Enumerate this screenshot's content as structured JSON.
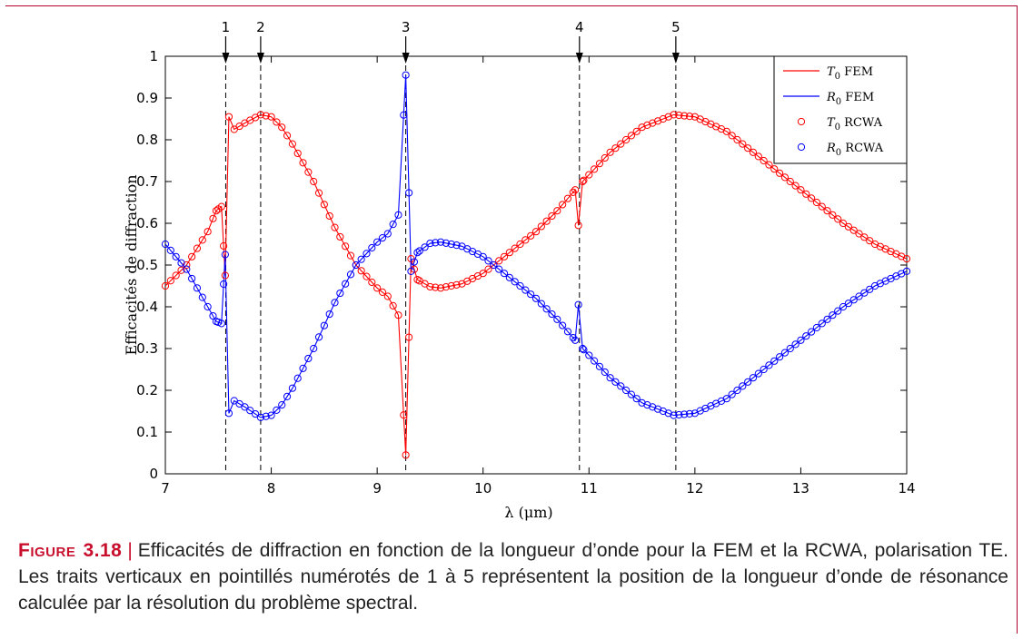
{
  "colors": {
    "t0": "#ff0000",
    "r0": "#0000ff",
    "frame": "#b0002c",
    "caption_accent": "#c8102e"
  },
  "caption": {
    "label": "Figure 3.18",
    "separator": "|",
    "text": "Efficacités de diffraction en fonction de la longueur d’onde pour la FEM et la RCWA, polarisation TE. Les traits verticaux en pointillés numérotés de 1 à 5 représentent la position de la longueur d’onde de résonance calculée par la résolution du problème spectral."
  },
  "chart_data": {
    "type": "line",
    "xlabel": "λ (μm)",
    "ylabel": "Efficacités de diffraction",
    "xlim": [
      7,
      14
    ],
    "ylim": [
      0,
      1
    ],
    "x_ticks": [
      7,
      8,
      9,
      10,
      11,
      12,
      13,
      14
    ],
    "y_ticks": [
      0,
      0.1,
      0.2,
      0.3,
      0.4,
      0.5,
      0.6,
      0.7,
      0.8,
      0.9,
      1
    ],
    "grid": false,
    "legend_position": "top-right",
    "resonances": [
      {
        "label": "1",
        "x": 7.57
      },
      {
        "label": "2",
        "x": 7.9
      },
      {
        "label": "3",
        "x": 9.27
      },
      {
        "label": "4",
        "x": 10.91
      },
      {
        "label": "5",
        "x": 11.82
      }
    ],
    "series": [
      {
        "name": "T0 FEM",
        "label_sym": "T",
        "label_sub": "0",
        "label_rest": " FEM",
        "kind": "line",
        "color": "#ff0000",
        "points": [
          [
            7,
            0.45
          ],
          [
            7.2,
            0.5
          ],
          [
            7.4,
            0.58
          ],
          [
            7.48,
            0.63
          ],
          [
            7.53,
            0.64
          ],
          [
            7.565,
            0.475
          ],
          [
            7.6,
            0.855
          ],
          [
            7.65,
            0.825
          ],
          [
            7.75,
            0.84
          ],
          [
            7.9,
            0.86
          ],
          [
            8.0,
            0.855
          ],
          [
            8.1,
            0.83
          ],
          [
            8.2,
            0.79
          ],
          [
            8.4,
            0.7
          ],
          [
            8.6,
            0.59
          ],
          [
            8.8,
            0.5
          ],
          [
            9.0,
            0.445
          ],
          [
            9.1,
            0.425
          ],
          [
            9.2,
            0.38
          ],
          [
            9.27,
            0.045
          ],
          [
            9.32,
            0.515
          ],
          [
            9.38,
            0.465
          ],
          [
            9.5,
            0.448
          ],
          [
            9.6,
            0.445
          ],
          [
            9.8,
            0.455
          ],
          [
            10.0,
            0.48
          ],
          [
            10.2,
            0.52
          ],
          [
            10.5,
            0.58
          ],
          [
            10.7,
            0.63
          ],
          [
            10.87,
            0.68
          ],
          [
            10.9,
            0.595
          ],
          [
            10.94,
            0.7
          ],
          [
            11.2,
            0.77
          ],
          [
            11.5,
            0.83
          ],
          [
            11.8,
            0.86
          ],
          [
            12.0,
            0.855
          ],
          [
            12.3,
            0.82
          ],
          [
            12.6,
            0.76
          ],
          [
            13.0,
            0.68
          ],
          [
            13.4,
            0.6
          ],
          [
            13.7,
            0.55
          ],
          [
            14,
            0.515
          ]
        ]
      },
      {
        "name": "R0 FEM",
        "label_sym": "R",
        "label_sub": "0",
        "label_rest": " FEM",
        "kind": "line",
        "color": "#0000ff",
        "points": [
          [
            7,
            0.55
          ],
          [
            7.2,
            0.49
          ],
          [
            7.4,
            0.4
          ],
          [
            7.48,
            0.365
          ],
          [
            7.53,
            0.36
          ],
          [
            7.565,
            0.525
          ],
          [
            7.6,
            0.145
          ],
          [
            7.65,
            0.175
          ],
          [
            7.75,
            0.16
          ],
          [
            7.9,
            0.135
          ],
          [
            8.0,
            0.14
          ],
          [
            8.1,
            0.165
          ],
          [
            8.2,
            0.205
          ],
          [
            8.4,
            0.3
          ],
          [
            8.6,
            0.41
          ],
          [
            8.8,
            0.5
          ],
          [
            9.0,
            0.555
          ],
          [
            9.1,
            0.575
          ],
          [
            9.2,
            0.62
          ],
          [
            9.27,
            0.955
          ],
          [
            9.32,
            0.485
          ],
          [
            9.38,
            0.53
          ],
          [
            9.5,
            0.552
          ],
          [
            9.6,
            0.555
          ],
          [
            9.8,
            0.545
          ],
          [
            10.0,
            0.52
          ],
          [
            10.2,
            0.48
          ],
          [
            10.5,
            0.42
          ],
          [
            10.7,
            0.37
          ],
          [
            10.87,
            0.32
          ],
          [
            10.9,
            0.405
          ],
          [
            10.94,
            0.3
          ],
          [
            11.2,
            0.23
          ],
          [
            11.5,
            0.17
          ],
          [
            11.8,
            0.14
          ],
          [
            12.0,
            0.145
          ],
          [
            12.3,
            0.18
          ],
          [
            12.6,
            0.24
          ],
          [
            13.0,
            0.32
          ],
          [
            13.4,
            0.4
          ],
          [
            13.7,
            0.45
          ],
          [
            14,
            0.485
          ]
        ]
      },
      {
        "name": "T0 RCWA",
        "label_sym": "T",
        "label_sub": "0",
        "label_rest": " RCWA",
        "kind": "markers",
        "color": "#ff0000",
        "of": 0
      },
      {
        "name": "R0 RCWA",
        "label_sym": "R",
        "label_sub": "0",
        "label_rest": " RCWA",
        "kind": "markers",
        "color": "#0000ff",
        "of": 1
      }
    ]
  }
}
